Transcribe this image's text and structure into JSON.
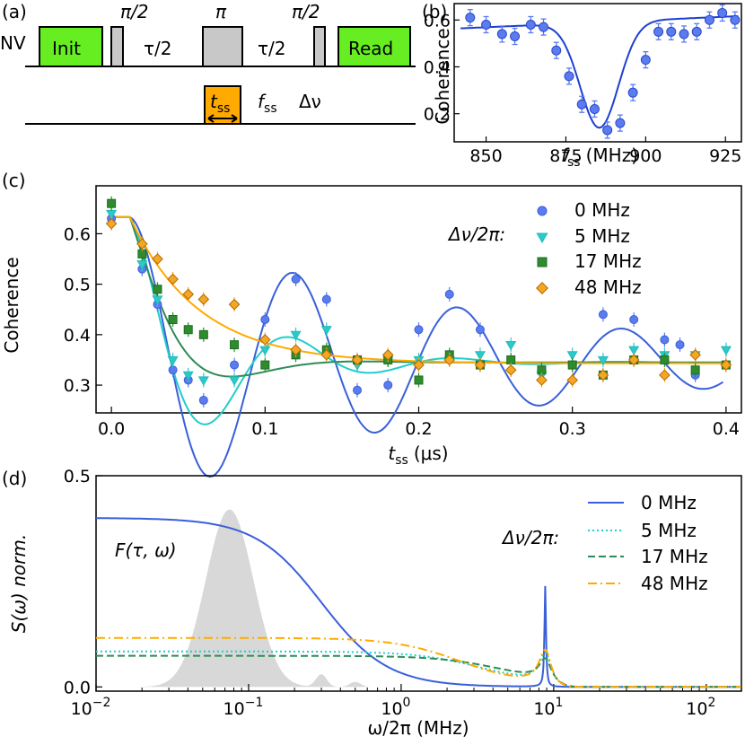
{
  "panels": {
    "a": {
      "label": "(a)",
      "nv": "NV",
      "init": "Init",
      "read": "Read",
      "pi_half_1": "π/2",
      "pi": "π",
      "pi_half_2": "π/2",
      "tau_half_1": "τ/2",
      "tau_half_2": "τ/2",
      "tss_main": "t",
      "tss_sub": "ss",
      "fss_main": "f",
      "fss_sub": "ss",
      "dnu": "Δν",
      "colors": {
        "init": "#66ee22",
        "pulse": "#c8c8c8",
        "tss": "#ffaa00"
      }
    }
  },
  "chart_data": [
    {
      "panel": "(b)",
      "type": "scatter",
      "xlabel_main": "f",
      "xlabel_sub": "ss",
      "xlabel_unit": "(MHz)",
      "ylabel": "Coherence",
      "xlim": [
        840,
        930
      ],
      "ylim": [
        0.08,
        0.67
      ],
      "xticks": [
        "850",
        "875",
        "900",
        "925"
      ],
      "yticks": [
        "0.2",
        "0.4",
        "0.6"
      ],
      "x": [
        845,
        850,
        855,
        859,
        864,
        868,
        872,
        876,
        880,
        884,
        888,
        892,
        896,
        900,
        904,
        908,
        912,
        916,
        920,
        924,
        928
      ],
      "y": [
        0.61,
        0.58,
        0.54,
        0.53,
        0.58,
        0.57,
        0.47,
        0.36,
        0.24,
        0.22,
        0.13,
        0.16,
        0.29,
        0.43,
        0.55,
        0.55,
        0.54,
        0.55,
        0.6,
        0.63,
        0.6
      ],
      "fit": {
        "baseline": 0.59,
        "dip_center": 885.5,
        "dip_depth": 0.45,
        "dip_width": 8.5
      },
      "color": "#3a5fd9"
    },
    {
      "panel": "(c)",
      "type": "scatter",
      "xlabel_main": "t",
      "xlabel_sub": "ss",
      "xlabel_unit": "(μs)",
      "ylabel": "Coherence",
      "xlim": [
        -0.01,
        0.41
      ],
      "ylim": [
        0.245,
        0.695
      ],
      "xticks": [
        "0.0",
        "0.1",
        "0.2",
        "0.3",
        "0.4"
      ],
      "yticks": [
        "0.3",
        "0.4",
        "0.5",
        "0.6"
      ],
      "legend_title": "Δν/2π:",
      "series": [
        {
          "name": "0 MHz",
          "marker": "circle",
          "color": "#3a5fd9",
          "fill": "#5b7cf0",
          "x": [
            0.0,
            0.02,
            0.03,
            0.04,
            0.05,
            0.06,
            0.08,
            0.1,
            0.12,
            0.14,
            0.16,
            0.18,
            0.2,
            0.22,
            0.24,
            0.28,
            0.3,
            0.32,
            0.34,
            0.36,
            0.37,
            0.38
          ],
          "y": [
            0.63,
            0.53,
            0.46,
            0.33,
            0.31,
            0.27,
            0.34,
            0.43,
            0.51,
            0.47,
            0.29,
            0.3,
            0.41,
            0.48,
            0.41,
            0.33,
            0.34,
            0.44,
            0.43,
            0.39,
            0.38,
            0.32
          ]
        },
        {
          "name": "5 MHz",
          "marker": "triangle-down",
          "color": "#22bbbb",
          "fill": "#2cc9c9",
          "x": [
            0.0,
            0.02,
            0.03,
            0.04,
            0.05,
            0.06,
            0.08,
            0.1,
            0.12,
            0.14,
            0.16,
            0.18,
            0.2,
            0.22,
            0.24,
            0.26,
            0.28,
            0.3,
            0.32,
            0.34,
            0.36,
            0.38,
            0.4
          ],
          "y": [
            0.64,
            0.54,
            0.47,
            0.35,
            0.32,
            0.31,
            0.31,
            0.37,
            0.4,
            0.41,
            0.34,
            0.35,
            0.35,
            0.35,
            0.36,
            0.38,
            0.32,
            0.36,
            0.35,
            0.37,
            0.36,
            0.36,
            0.37
          ]
        },
        {
          "name": "17 MHz",
          "marker": "square",
          "color": "#1e6e1e",
          "fill": "#2e8b2e",
          "x": [
            0.0,
            0.02,
            0.03,
            0.04,
            0.05,
            0.06,
            0.08,
            0.1,
            0.12,
            0.14,
            0.16,
            0.18,
            0.2,
            0.22,
            0.24,
            0.26,
            0.28,
            0.3,
            0.32,
            0.34,
            0.36,
            0.38,
            0.4
          ],
          "y": [
            0.66,
            0.56,
            0.49,
            0.43,
            0.41,
            0.4,
            0.38,
            0.34,
            0.36,
            0.37,
            0.35,
            0.35,
            0.31,
            0.36,
            0.34,
            0.35,
            0.33,
            0.34,
            0.32,
            0.35,
            0.35,
            0.33,
            0.34
          ]
        },
        {
          "name": "48 MHz",
          "marker": "diamond",
          "color": "#b36b00",
          "fill": "#f5a623",
          "x": [
            0.0,
            0.02,
            0.03,
            0.04,
            0.05,
            0.06,
            0.08,
            0.1,
            0.12,
            0.14,
            0.16,
            0.18,
            0.2,
            0.22,
            0.24,
            0.26,
            0.28,
            0.3,
            0.32,
            0.34,
            0.36,
            0.38,
            0.4
          ],
          "y": [
            0.62,
            0.58,
            0.55,
            0.51,
            0.48,
            0.47,
            0.46,
            0.39,
            0.37,
            0.36,
            0.35,
            0.36,
            0.34,
            0.35,
            0.34,
            0.33,
            0.31,
            0.31,
            0.32,
            0.35,
            0.32,
            0.36,
            0.34
          ]
        }
      ],
      "fits": [
        {
          "name": "0 MHz",
          "color": "#3a5fd9"
        },
        {
          "name": "5 MHz",
          "color": "#22cccc"
        },
        {
          "name": "17 MHz",
          "color": "#2e8b57"
        },
        {
          "name": "48 MHz",
          "color": "#ffaa00"
        }
      ]
    },
    {
      "panel": "(d)",
      "type": "line",
      "xscale": "log",
      "xlabel": "ω/2π (MHz)",
      "ylabel": "S(ω) norm.",
      "xlim": [
        0.01,
        170
      ],
      "ylim": [
        -0.01,
        0.5
      ],
      "xticks": [
        {
          "base": "10",
          "exp": "−2"
        },
        {
          "base": "10",
          "exp": "−1"
        },
        {
          "base": "10",
          "exp": "0"
        },
        {
          "base": "10",
          "exp": "1"
        },
        {
          "base": "10",
          "exp": "2"
        }
      ],
      "yticks": [
        "0.0",
        "0.5"
      ],
      "legend_title": "Δν/2π:",
      "filter_label": "F(τ, ω)",
      "filter": {
        "peak_freq": 0.075,
        "peak_value": 0.42,
        "color": "#d8d8d8"
      },
      "series": [
        {
          "name": "0 MHz",
          "style": "solid",
          "color": "#3a5fd9",
          "plateau": 0.4,
          "rolloff": 0.3,
          "peak_freq": 8.8,
          "peak_value": 0.24
        },
        {
          "name": "5 MHz",
          "style": "dotted",
          "color": "#22cccc",
          "plateau": 0.083,
          "rolloff": 3.5,
          "peak_freq": 8.8,
          "peak_value": 0.07
        },
        {
          "name": "17 MHz",
          "style": "dashed",
          "color": "#2e8b57",
          "plateau": 0.073,
          "rolloff": 5,
          "peak_freq": 8.8,
          "peak_value": 0.05
        },
        {
          "name": "48 MHz",
          "style": "dashdot",
          "color": "#ffaa00",
          "plateau": 0.115,
          "rolloff": 2.5,
          "peak_freq": 8.8,
          "peak_value": 0.08
        }
      ]
    }
  ]
}
